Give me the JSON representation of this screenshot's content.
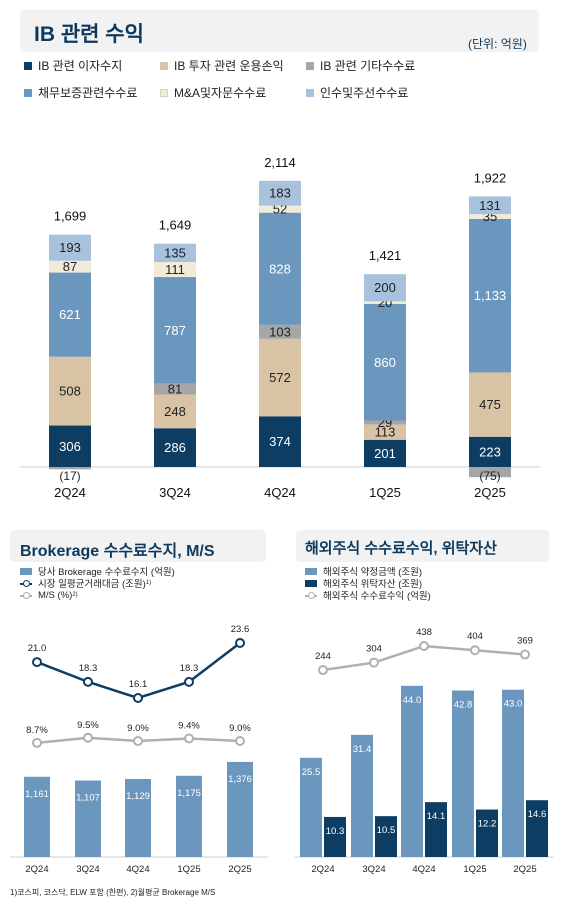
{
  "ib": {
    "title": "IB 관련 수익",
    "unit": "(단위: 억원)",
    "legend": [
      {
        "name": "IB 관련 이자수지",
        "color": "#0e3d64"
      },
      {
        "name": "IB 투자 관련 운용손익",
        "color": "#d8c3a5"
      },
      {
        "name": "IB 관련 기타수수료",
        "color": "#a6a6a6"
      },
      {
        "name": "채무보증관련수수료",
        "color": "#6b97bf"
      },
      {
        "name": "M&A및자문수수료",
        "color": "#f0ecd8"
      },
      {
        "name": "인수및주선수수료",
        "color": "#a8c1dc"
      }
    ]
  },
  "brokerage": {
    "title": "Brokerage 수수료수지, M/S",
    "legend": [
      {
        "name": "당사 Brokerage 수수료수지 (억원)",
        "color": "#6b97bf",
        "kind": "bar"
      },
      {
        "name": "시장 일평균거래대금 (조원)",
        "sup": "1)",
        "color": "#0e3d64",
        "kind": "line"
      },
      {
        "name": "M/S (%)",
        "sup": "2)",
        "color": "#b0b0b0",
        "kind": "line"
      }
    ],
    "footnote": "1)코스피, 코스닥, ELW 포함 (한편), 2)월평균 Brokerage M/S"
  },
  "overseas": {
    "title": "해외주식 수수료수익, 위탁자산",
    "legend": [
      {
        "name": "해외주식 약정금액 (조원)",
        "color": "#6b97bf",
        "kind": "bar"
      },
      {
        "name": "해외주식 위탁자산 (조원)",
        "color": "#0e3d64",
        "kind": "bar"
      },
      {
        "name": "해외주식 수수료수익 (억원)",
        "color": "#b0b0b0",
        "kind": "line"
      }
    ]
  },
  "chart_data": [
    {
      "type": "bar",
      "stacked": true,
      "title": "IB 관련 수익",
      "categories": [
        "2Q24",
        "3Q24",
        "4Q24",
        "1Q25",
        "2Q25"
      ],
      "series": [
        {
          "name": "IB 관련 이자수지",
          "values": [
            306,
            286,
            374,
            201,
            223
          ],
          "color": "#0e3d64"
        },
        {
          "name": "IB 투자 관련 운용손익",
          "values": [
            508,
            248,
            572,
            113,
            475
          ],
          "color": "#d8c3a5"
        },
        {
          "name": "IB 관련 기타수수료",
          "values": [
            -17,
            81,
            103,
            29,
            -75
          ],
          "color": "#a6a6a6"
        },
        {
          "name": "채무보증관련수수료",
          "values": [
            621,
            787,
            828,
            860,
            1133
          ],
          "color": "#6b97bf"
        },
        {
          "name": "M&A및자문수수료",
          "values": [
            87,
            111,
            52,
            20,
            35
          ],
          "color": "#f0ecd8"
        },
        {
          "name": "인수및주선수수료",
          "values": [
            193,
            135,
            183,
            200,
            131
          ],
          "color": "#a8c1dc"
        }
      ],
      "totals": [
        "1,699",
        "1,649",
        "2,114",
        "1,421",
        "1,922"
      ],
      "value_labels": [
        [
          "306",
          "286",
          "374",
          "201",
          "223"
        ],
        [
          "508",
          "248",
          "572",
          "113",
          "475"
        ],
        [
          "(17)",
          "81",
          "103",
          "29",
          "(75)"
        ],
        [
          "621",
          "787",
          "828",
          "860",
          "1,133"
        ],
        [
          "87",
          "111",
          "52",
          "20",
          "35"
        ],
        [
          "193",
          "135",
          "183",
          "200",
          "131"
        ]
      ]
    },
    {
      "type": "bar",
      "title": "Brokerage 수수료수지, M/S",
      "categories": [
        "2Q24",
        "3Q24",
        "4Q24",
        "1Q25",
        "2Q25"
      ],
      "series": [
        {
          "name": "당사 Brokerage 수수료수지 (억원)",
          "kind": "bar",
          "values": [
            1161,
            1107,
            1129,
            1175,
            1376
          ],
          "labels": [
            "1,161",
            "1,107",
            "1,129",
            "1,175",
            "1,376"
          ],
          "color": "#6b97bf"
        },
        {
          "name": "시장 일평균거래대금 (조원)",
          "kind": "line",
          "values": [
            21.0,
            18.3,
            16.1,
            18.3,
            23.6
          ],
          "labels": [
            "21.0",
            "18.3",
            "16.1",
            "18.3",
            "23.6"
          ],
          "color": "#0e3d64"
        },
        {
          "name": "M/S (%)",
          "kind": "line",
          "values": [
            8.7,
            9.5,
            9.0,
            9.4,
            9.0
          ],
          "labels": [
            "8.7%",
            "9.5%",
            "9.0%",
            "9.4%",
            "9.0%"
          ],
          "color": "#b0b0b0"
        }
      ]
    },
    {
      "type": "bar",
      "title": "해외주식 수수료수익, 위탁자산",
      "categories": [
        "2Q24",
        "3Q24",
        "4Q24",
        "1Q25",
        "2Q25"
      ],
      "series": [
        {
          "name": "해외주식 약정금액 (조원)",
          "kind": "bar",
          "values": [
            25.5,
            31.4,
            44.0,
            42.8,
            43.0
          ],
          "labels": [
            "25.5",
            "31.4",
            "44.0",
            "42.8",
            "43.0"
          ],
          "color": "#6b97bf"
        },
        {
          "name": "해외주식 위탁자산 (조원)",
          "kind": "bar",
          "values": [
            10.3,
            10.5,
            14.1,
            12.2,
            14.6
          ],
          "labels": [
            "10.3",
            "10.5",
            "14.1",
            "12.2",
            "14.6"
          ],
          "color": "#0e3d64"
        },
        {
          "name": "해외주식 수수료수익 (억원)",
          "kind": "line",
          "values": [
            244,
            304,
            438,
            404,
            369
          ],
          "labels": [
            "244",
            "304",
            "438",
            "404",
            "369"
          ],
          "color": "#b0b0b0"
        }
      ]
    }
  ]
}
